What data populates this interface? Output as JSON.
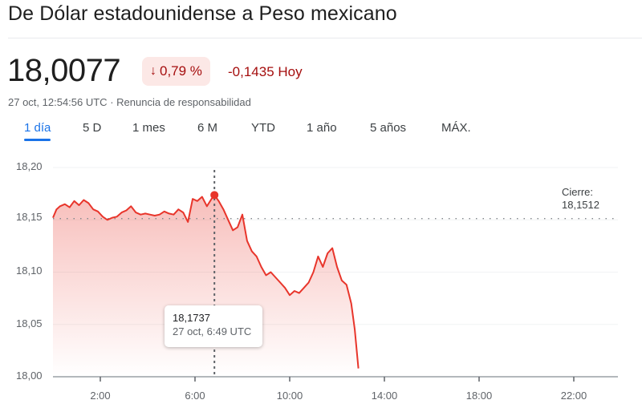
{
  "header": {
    "title": "De Dólar estadounidense a Peso mexicano"
  },
  "quote": {
    "price": "18,0077",
    "change_pct": "0,79 %",
    "change_direction": "down",
    "change_abs": "-0,1435 Hoy",
    "timestamp": "27 oct, 12:54:56 UTC",
    "separator": "·",
    "disclaimer_link": "Renuncia de responsabilidad"
  },
  "colors": {
    "negative_text": "#a50e0e",
    "negative_badge_bg": "#fce8e6",
    "line": "#e8352b",
    "accent": "#1a73e8"
  },
  "tabs": [
    {
      "label": "1 día",
      "active": true
    },
    {
      "label": "5 D",
      "active": false
    },
    {
      "label": "1 mes",
      "active": false
    },
    {
      "label": "6 M",
      "active": false
    },
    {
      "label": "YTD",
      "active": false
    },
    {
      "label": "1 año",
      "active": false
    },
    {
      "label": "5 años",
      "active": false
    },
    {
      "label": "MÁX.",
      "active": false
    }
  ],
  "chart": {
    "close_label": "Cierre:",
    "close_value": "18,1512",
    "tooltip": {
      "value": "18,1737",
      "time": "27 oct, 6:49 UTC"
    }
  },
  "chart_data": {
    "type": "area",
    "title": "De Dólar estadounidense a Peso mexicano",
    "xlabel": "",
    "ylabel": "",
    "x_tick_labels": [
      "2:00",
      "6:00",
      "10:00",
      "14:00",
      "18:00",
      "22:00"
    ],
    "y_tick_labels": [
      "18,20",
      "18,15",
      "18,10",
      "18,05",
      "18,00"
    ],
    "ylim": [
      18.0,
      18.2
    ],
    "xlim_hours": [
      0,
      24
    ],
    "grid": true,
    "reference_line": {
      "label": "Cierre",
      "value": 18.1512,
      "style": "dotted"
    },
    "crosshair": {
      "x_hour": 6.82,
      "value": 18.1737,
      "label": "27 oct, 6:49 UTC"
    },
    "series": [
      {
        "name": "USD/MXN",
        "x_hours": [
          0.0,
          0.15,
          0.3,
          0.5,
          0.7,
          0.9,
          1.1,
          1.3,
          1.5,
          1.7,
          1.9,
          2.1,
          2.3,
          2.5,
          2.7,
          2.9,
          3.1,
          3.3,
          3.5,
          3.7,
          3.9,
          4.1,
          4.3,
          4.5,
          4.7,
          4.9,
          5.1,
          5.3,
          5.5,
          5.7,
          5.9,
          6.1,
          6.3,
          6.5,
          6.7,
          6.82,
          7.0,
          7.2,
          7.4,
          7.6,
          7.8,
          8.0,
          8.2,
          8.4,
          8.6,
          8.8,
          9.0,
          9.2,
          9.4,
          9.6,
          9.8,
          10.0,
          10.2,
          10.4,
          10.6,
          10.8,
          11.0,
          11.2,
          11.4,
          11.6,
          11.8,
          12.0,
          12.2,
          12.4,
          12.6,
          12.75,
          12.9
        ],
        "values": [
          18.152,
          18.16,
          18.163,
          18.165,
          18.162,
          18.168,
          18.164,
          18.169,
          18.166,
          18.16,
          18.158,
          18.153,
          18.15,
          18.152,
          18.153,
          18.157,
          18.159,
          18.163,
          18.157,
          18.155,
          18.156,
          18.155,
          18.154,
          18.155,
          18.158,
          18.156,
          18.155,
          18.16,
          18.157,
          18.148,
          18.17,
          18.168,
          18.172,
          18.163,
          18.17,
          18.1737,
          18.168,
          18.16,
          18.15,
          18.14,
          18.143,
          18.155,
          18.13,
          18.12,
          18.115,
          18.105,
          18.097,
          18.1,
          18.095,
          18.09,
          18.085,
          18.078,
          18.082,
          18.08,
          18.085,
          18.09,
          18.1,
          18.115,
          18.105,
          18.118,
          18.123,
          18.105,
          18.092,
          18.088,
          18.07,
          18.045,
          18.008
        ]
      }
    ]
  }
}
